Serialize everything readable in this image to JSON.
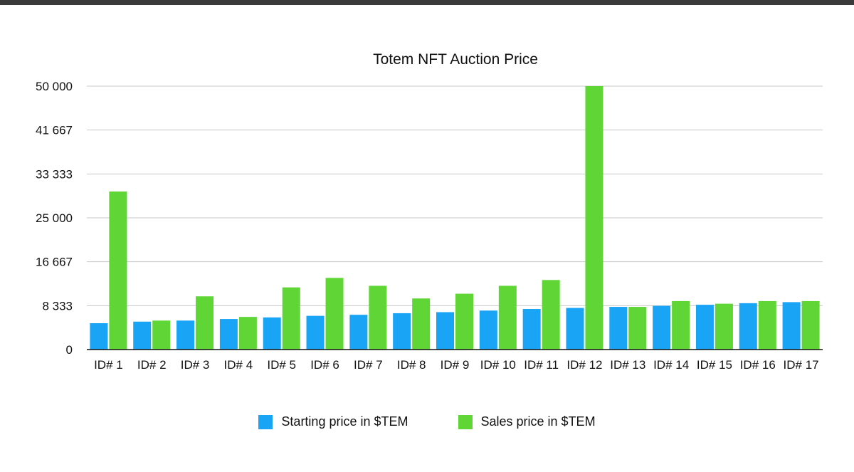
{
  "chart_data": {
    "type": "bar",
    "title": "Totem NFT Auction Price",
    "xlabel": "",
    "ylabel": "",
    "ylim": [
      0,
      50000
    ],
    "y_ticks": [
      "0",
      "8 333",
      "16 667",
      "25 000",
      "33 333",
      "41 667",
      "50 000"
    ],
    "y_tick_values": [
      0,
      8333,
      16667,
      25000,
      33333,
      41667,
      50000
    ],
    "grid": true,
    "legend_position": "bottom",
    "categories": [
      "ID# 1",
      "ID# 2",
      "ID# 3",
      "ID# 4",
      "ID# 5",
      "ID# 6",
      "ID# 7",
      "ID# 8",
      "ID# 9",
      "ID# 10",
      "ID# 11",
      "ID# 12",
      "ID# 13",
      "ID# 14",
      "ID# 15",
      "ID# 16",
      "ID# 17"
    ],
    "series": [
      {
        "name": "Starting price in $TEM",
        "color": "#1aa4f5",
        "values": [
          5000,
          5300,
          5500,
          5800,
          6100,
          6400,
          6600,
          6900,
          7100,
          7400,
          7700,
          7900,
          8100,
          8300,
          8500,
          8800,
          9000
        ]
      },
      {
        "name": "Sales price in $TEM",
        "color": "#5fd636",
        "values": [
          30000,
          5500,
          10100,
          6200,
          11800,
          13600,
          12100,
          9700,
          10600,
          12100,
          13200,
          50000,
          8100,
          9200,
          8700,
          9200,
          9200
        ]
      }
    ]
  }
}
